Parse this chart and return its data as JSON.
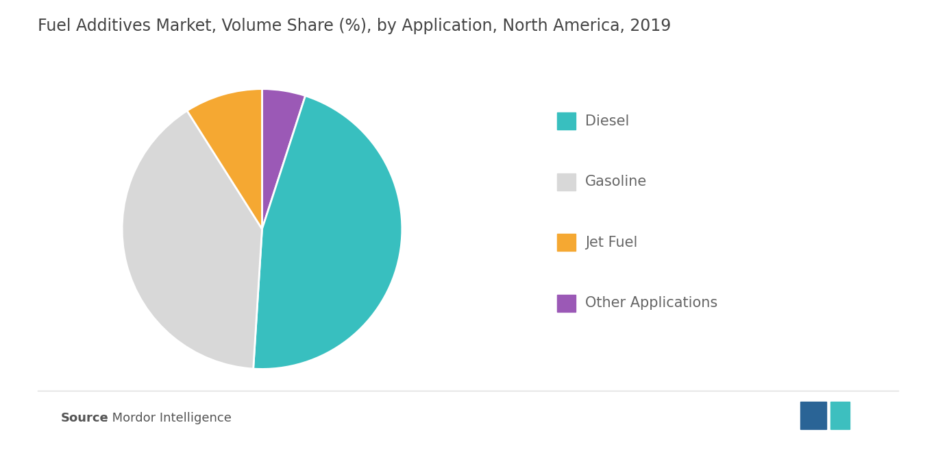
{
  "title": "Fuel Additives Market, Volume Share (%), by Application, North America, 2019",
  "labels": [
    "Diesel",
    "Gasoline",
    "Jet Fuel",
    "Other Applications"
  ],
  "values": [
    46,
    40,
    9,
    5
  ],
  "colors": [
    "#38bfbf",
    "#d8d8d8",
    "#f5a832",
    "#9b59b6"
  ],
  "legend_labels": [
    "Diesel",
    "Gasoline",
    "Jet Fuel",
    "Other Applications"
  ],
  "source_bold": "Source",
  "source_regular": " : Mordor Intelligence",
  "background_color": "#ffffff",
  "title_fontsize": 17,
  "legend_fontsize": 15,
  "source_fontsize": 13,
  "startangle": 90,
  "pie_order": [
    3,
    0,
    1,
    2
  ],
  "title_color": "#444444",
  "legend_text_color": "#666666",
  "source_text_color": "#555555",
  "separator_color": "#dddddd",
  "logo_blue": "#2a6496",
  "logo_teal": "#3dbfbf"
}
